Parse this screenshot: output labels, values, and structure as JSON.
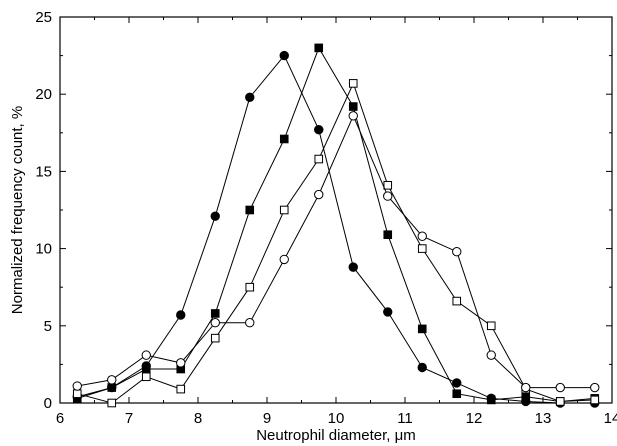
{
  "chart_data": {
    "type": "line",
    "title": "",
    "xlabel": "Neutrophil diameter, μm",
    "ylabel": "Normalized frequency count, %",
    "xlim": [
      6,
      14
    ],
    "ylim": [
      0,
      25
    ],
    "x_ticks": [
      6,
      7,
      8,
      9,
      10,
      11,
      12,
      13,
      14
    ],
    "y_ticks": [
      0,
      5,
      10,
      15,
      20,
      25
    ],
    "grid": false,
    "legend": "none",
    "series": [
      {
        "marker": "filled-circle",
        "color": "#000000",
        "x": [
          6.25,
          6.75,
          7.25,
          7.75,
          8.25,
          8.75,
          9.25,
          9.75,
          10.25,
          10.75,
          11.25,
          11.75,
          12.25,
          12.75,
          13.25,
          13.75
        ],
        "y": [
          0.4,
          1.0,
          2.4,
          5.7,
          12.1,
          19.8,
          22.5,
          17.7,
          8.8,
          5.9,
          2.3,
          1.3,
          0.3,
          0.1,
          0.0,
          0.0
        ]
      },
      {
        "marker": "filled-square",
        "color": "#000000",
        "x": [
          6.25,
          6.75,
          7.25,
          7.75,
          8.25,
          8.75,
          9.25,
          9.75,
          10.25,
          10.75,
          11.25,
          11.75,
          12.25,
          12.75,
          13.25,
          13.75
        ],
        "y": [
          0.3,
          1.0,
          2.2,
          2.2,
          5.8,
          12.5,
          17.1,
          23.0,
          19.2,
          10.9,
          4.8,
          0.6,
          0.2,
          0.4,
          0.1,
          0.3
        ]
      },
      {
        "marker": "open-square",
        "color": "#000000",
        "x": [
          6.25,
          6.75,
          7.25,
          7.75,
          8.25,
          8.75,
          9.25,
          9.75,
          10.25,
          10.75,
          11.25,
          11.75,
          12.25,
          12.75,
          13.25,
          13.75
        ],
        "y": [
          0.6,
          0.0,
          1.7,
          0.9,
          4.2,
          7.5,
          12.5,
          15.8,
          20.7,
          14.1,
          10.0,
          6.6,
          5.0,
          0.9,
          0.1,
          0.2
        ]
      },
      {
        "marker": "open-circle",
        "color": "#000000",
        "x": [
          6.25,
          6.75,
          7.25,
          7.75,
          8.25,
          8.75,
          9.25,
          9.75,
          10.25,
          10.75,
          11.25,
          11.75,
          12.25,
          12.75,
          13.25,
          13.75
        ],
        "y": [
          1.1,
          1.5,
          3.1,
          2.6,
          5.2,
          5.2,
          9.3,
          13.5,
          18.6,
          13.4,
          10.8,
          9.8,
          3.1,
          1.0,
          1.0,
          1.0
        ]
      }
    ]
  }
}
